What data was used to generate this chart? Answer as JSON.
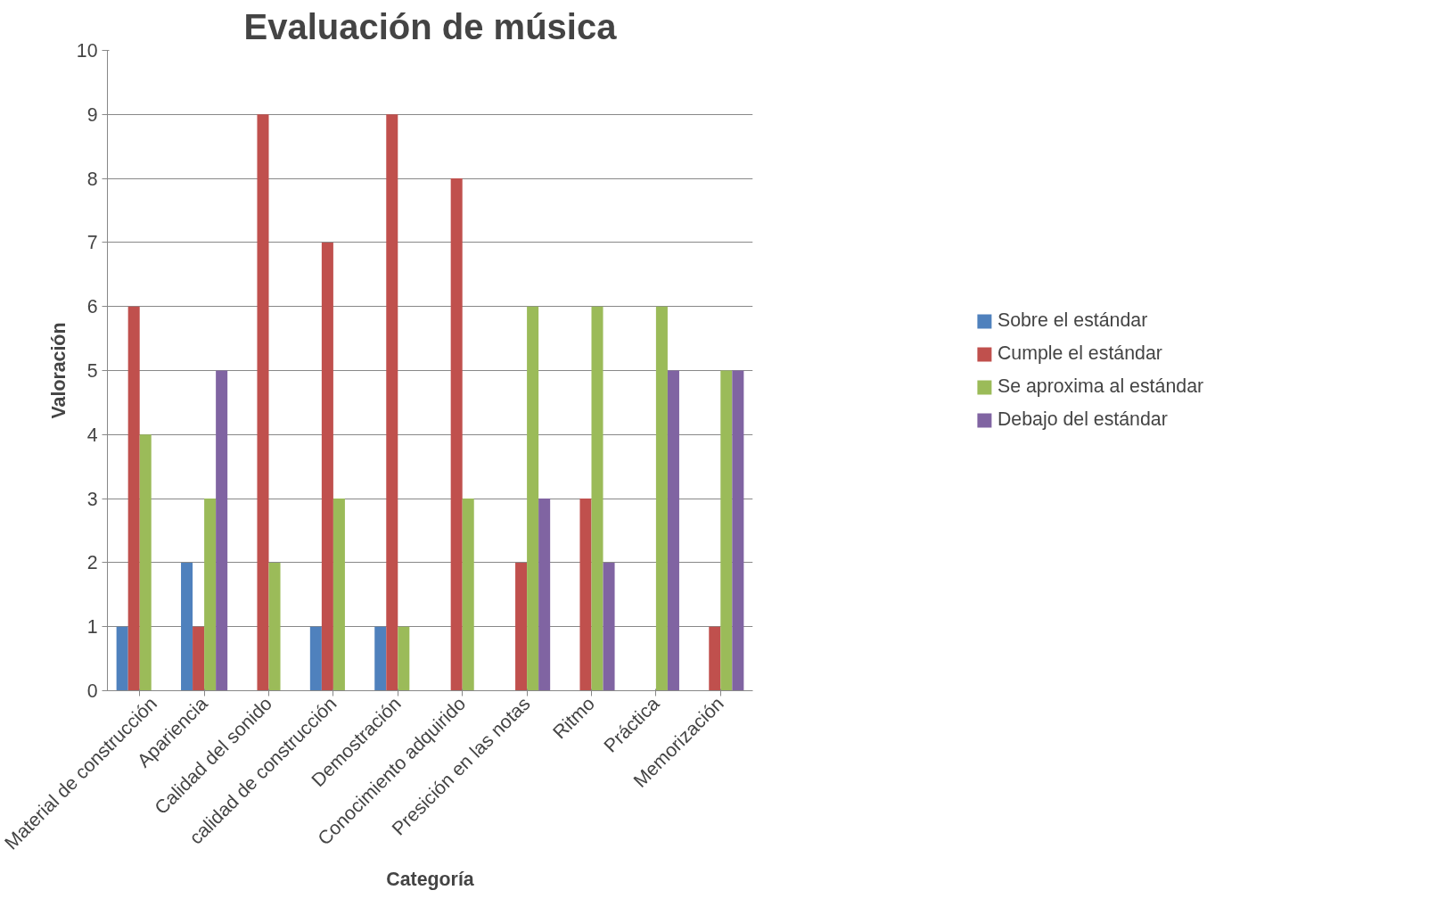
{
  "chart_data": {
    "type": "bar",
    "title": "Evaluación de música",
    "xlabel": "Categoría",
    "ylabel": "Valoración",
    "categories": [
      "Material de construcción",
      "Apariencia",
      "Calidad del sonido",
      "calidad de construcción",
      "Demostración",
      "Conocimiento adquirido",
      "Presición en las notas",
      "Ritmo",
      "Práctica",
      "Memorización"
    ],
    "series": [
      {
        "name": "Sobre el estándar",
        "color": "#4f81bd",
        "values": [
          1,
          2,
          0,
          1,
          1,
          0,
          0,
          0,
          0,
          0
        ]
      },
      {
        "name": "Cumple el estándar",
        "color": "#c0504d",
        "values": [
          6,
          1,
          9,
          7,
          9,
          8,
          2,
          3,
          0,
          1
        ]
      },
      {
        "name": "Se aproxima al estándar",
        "color": "#9bbb59",
        "values": [
          4,
          3,
          2,
          3,
          1,
          3,
          6,
          6,
          6,
          5
        ]
      },
      {
        "name": "Debajo del estándar",
        "color": "#8064a2",
        "values": [
          0,
          5,
          0,
          0,
          0,
          0,
          3,
          2,
          5,
          5
        ]
      }
    ],
    "ylim": [
      0,
      10
    ],
    "yticks": [
      0,
      1,
      2,
      3,
      4,
      5,
      6,
      7,
      8,
      9,
      10
    ],
    "grid": "y",
    "legend": "right"
  }
}
